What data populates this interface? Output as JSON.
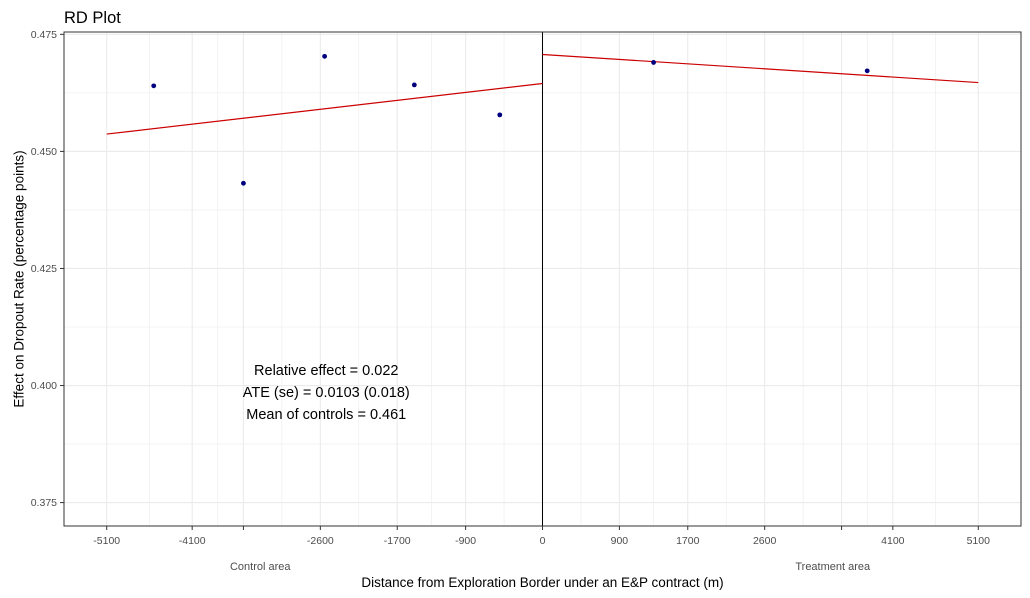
{
  "chart_data": {
    "type": "scatter",
    "title": "RD Plot",
    "xlabel": "Distance from Exploration Border under an E&P contract (m)",
    "ylabel": "Effect on Dropout Rate (percentage points)",
    "xlim": [
      -5600,
      5600
    ],
    "ylim": [
      0.37,
      0.4755
    ],
    "x_ticks": [
      -5100,
      -4100,
      -2600,
      -1700,
      -900,
      0,
      900,
      1700,
      2600,
      4100,
      5100
    ],
    "x_tick_labels": [
      "-5100",
      "-4100",
      "-2600",
      "-1700",
      "-900",
      "0",
      "900",
      "1700",
      "2600",
      "4100",
      "5100"
    ],
    "x_minor_ticks": [
      -3500,
      3500
    ],
    "y_ticks": [
      0.375,
      0.4,
      0.425,
      0.45,
      0.475
    ],
    "y_tick_labels": [
      "0.375",
      "0.400",
      "0.425",
      "0.450",
      "0.475"
    ],
    "grid": true,
    "cutoff": 0,
    "points": [
      {
        "x": -4550,
        "y": 0.464
      },
      {
        "x": -3500,
        "y": 0.4432
      },
      {
        "x": -2550,
        "y": 0.4703
      },
      {
        "x": -1500,
        "y": 0.4642
      },
      {
        "x": -500,
        "y": 0.4578
      },
      {
        "x": 1300,
        "y": 0.469
      },
      {
        "x": 3800,
        "y": 0.4672
      }
    ],
    "fit_lines": [
      {
        "segment": "control",
        "x": [
          -5100,
          0
        ],
        "y": [
          0.4537,
          0.4645
        ]
      },
      {
        "segment": "treatment",
        "x": [
          0,
          5100
        ],
        "y": [
          0.4707,
          0.4647
        ]
      }
    ],
    "region_labels": {
      "control": "Control area",
      "treatment": "Treatment area"
    },
    "annotations": [
      "Relative effect = 0.022",
      "ATE (se) = 0.0103 (0.018)",
      "Mean of controls = 0.461"
    ],
    "colors": {
      "points": "#00007f",
      "fit_line": "#cc0000",
      "cutoff_line": "#000000",
      "grid": "#ebebeb"
    }
  }
}
